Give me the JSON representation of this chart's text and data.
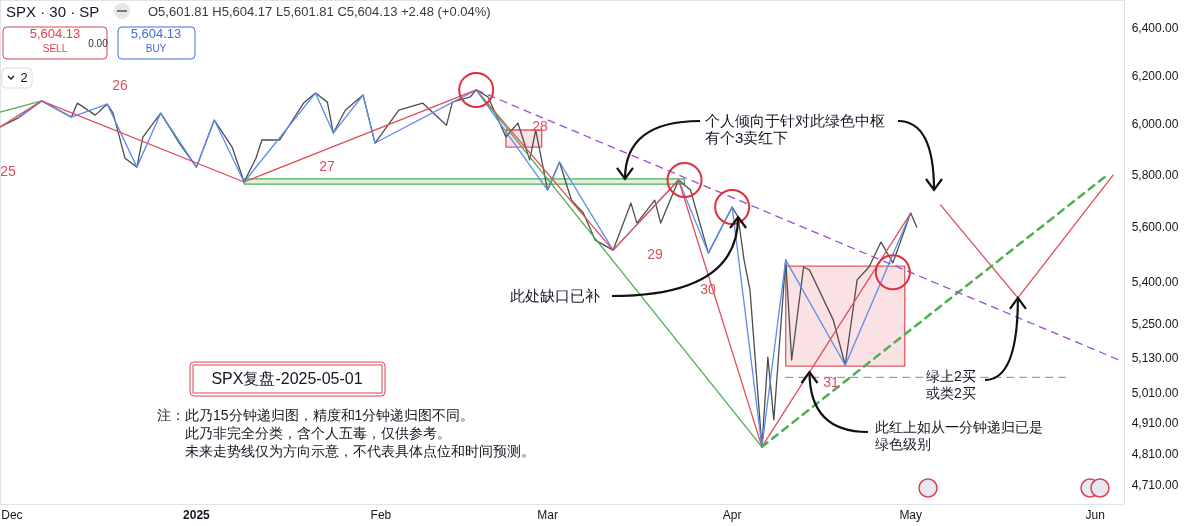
{
  "chart_data": {
    "type": "line",
    "title": "SPX · 30 · SP",
    "subtitle": "O5,601.81 H5,604.17 L5,601.81 C5,604.13 +2.48 (+0.04%)",
    "xlim": [
      "2024-11-29",
      "2025-06-06"
    ],
    "ylim": [
      4651,
      6526
    ],
    "log": true,
    "xticks": [
      {
        "value": "2024-12-01",
        "label": "Dec"
      },
      {
        "value": "2025-01-01",
        "label": "2025"
      },
      {
        "value": "2025-02-01",
        "label": "Feb"
      },
      {
        "value": "2025-03-01",
        "label": "Mar"
      },
      {
        "value": "2025-04-01",
        "label": "Apr"
      },
      {
        "value": "2025-05-01",
        "label": "May"
      },
      {
        "value": "2025-06-01",
        "label": "Jun"
      }
    ],
    "yticks": [
      {
        "value": 6400,
        "label": "6,400.00"
      },
      {
        "value": 6200,
        "label": "6,200.00"
      },
      {
        "value": 6000,
        "label": "6,000.00"
      },
      {
        "value": 5800,
        "label": "5,800.00"
      },
      {
        "value": 5600,
        "label": "5,600.00"
      },
      {
        "value": 5400,
        "label": "5,400.00"
      },
      {
        "value": 5250,
        "label": "5,250.00"
      },
      {
        "value": 5130,
        "label": "5,130.00"
      },
      {
        "value": 5010,
        "label": "5,010.00"
      },
      {
        "value": 4910,
        "label": "4,910.00"
      },
      {
        "value": 4810,
        "label": "4,810.00"
      },
      {
        "value": 4710,
        "label": "4,710.00"
      }
    ],
    "series": [
      {
        "type": "area",
        "color": "#4caf50",
        "x": [
          "2025-01-09",
          "2025-03-24",
          "2025-03-24",
          "2025-01-09",
          "2025-01-09"
        ],
        "values": [
          5788,
          5788,
          5768,
          5768,
          5788
        ]
      },
      {
        "type": "area",
        "color": "#e05a68",
        "x": [
          "2025-04-10",
          "2025-04-30",
          "2025-04-30",
          "2025-04-10",
          "2025-04-10"
        ],
        "values": [
          5459,
          5459,
          5105,
          5105,
          5459
        ]
      },
      {
        "type": "area",
        "color": "#e05a68",
        "x": [
          "2025-02-22",
          "2025-02-28",
          "2025-02-28",
          "2025-02-22",
          "2025-02-22"
        ],
        "values": [
          5981,
          5981,
          5913,
          5913,
          5981
        ]
      },
      {
        "type": "line",
        "color": "#4d4d4d",
        "x": [
          "2024-11-29",
          "2024-12-02",
          "2024-12-06",
          "2024-12-11",
          "2024-12-12",
          "2024-12-15",
          "2024-12-17",
          "2024-12-18",
          "2024-12-20",
          "2024-12-22",
          "2024-12-23",
          "2024-12-26",
          "2024-12-29",
          "2025-01-01",
          "2025-01-04",
          "2025-01-07",
          "2025-01-09",
          "2025-01-11",
          "2025-01-12",
          "2025-01-15",
          "2025-01-19",
          "2025-01-21",
          "2025-01-23",
          "2025-01-24",
          "2025-01-26",
          "2025-01-29",
          "2025-01-31",
          "2025-02-04",
          "2025-02-08",
          "2025-02-12",
          "2025-02-13",
          "2025-02-16",
          "2025-02-17",
          "2025-02-19",
          "2025-02-22",
          "2025-02-24",
          "2025-02-26",
          "2025-02-27",
          "2025-03-01",
          "2025-03-03",
          "2025-03-05",
          "2025-03-07",
          "2025-03-09",
          "2025-03-12",
          "2025-03-15",
          "2025-03-16",
          "2025-03-19",
          "2025-03-20",
          "2025-03-23",
          "2025-03-25",
          "2025-03-28",
          "2025-04-01",
          "2025-04-02",
          "2025-04-03",
          "2025-04-04",
          "2025-04-06",
          "2025-04-07",
          "2025-04-08",
          "2025-04-10",
          "2025-04-11",
          "2025-04-13",
          "2025-04-14",
          "2025-04-18",
          "2025-04-20",
          "2025-04-22",
          "2025-04-24",
          "2025-04-26",
          "2025-04-28",
          "2025-05-01",
          "2025-05-02"
        ],
        "values": [
          5993,
          6029,
          6099,
          6033,
          6090,
          6041,
          6086,
          6049,
          5869,
          5834,
          5953,
          6049,
          5933,
          5834,
          6021,
          5913,
          5776,
          5869,
          5941,
          5941,
          6090,
          6131,
          6094,
          5969,
          6061,
          6123,
          5929,
          6061,
          6090,
          6000,
          6094,
          6115,
          6144,
          6115,
          5953,
          6009,
          5862,
          5981,
          5745,
          5854,
          5706,
          5657,
          5555,
          5518,
          5695,
          5619,
          5706,
          5619,
          5784,
          5745,
          5507,
          5680,
          5642,
          5482,
          5372,
          4836,
          5136,
          4924,
          5482,
          5126,
          5456,
          5445,
          5265,
          5108,
          5409,
          5456,
          5548,
          5471,
          5657,
          5604
        ]
      },
      {
        "type": "line",
        "color": "#5b8def",
        "x": [
          "2024-12-02",
          "2024-12-06",
          "2024-12-11",
          "2024-12-17",
          "2024-12-22",
          "2024-12-26",
          "2025-01-01",
          "2025-01-04",
          "2025-01-09",
          "2025-01-21",
          "2025-01-24",
          "2025-01-29",
          "2025-01-31",
          "2025-02-17",
          "2025-03-01",
          "2025-03-03",
          "2025-03-12",
          "2025-03-23",
          "2025-03-28",
          "2025-04-01",
          "2025-04-06",
          "2025-04-10",
          "2025-04-20",
          "2025-05-01"
        ],
        "values": [
          6029,
          6099,
          6033,
          6086,
          5834,
          6049,
          5834,
          6021,
          5776,
          6131,
          5969,
          6123,
          5929,
          6144,
          5745,
          5854,
          5518,
          5784,
          5507,
          5680,
          4836,
          5482,
          5108,
          5657
        ]
      },
      {
        "type": "line",
        "color": "#e04e5a",
        "x": [
          "2024-11-29",
          "2024-12-06",
          "2025-01-09",
          "2025-02-17",
          "2025-03-12",
          "2025-03-23",
          "2025-04-06",
          "2025-05-01"
        ],
        "values": [
          5993,
          6099,
          5776,
          6144,
          5518,
          5784,
          4836,
          5657
        ]
      },
      {
        "type": "line",
        "color": "#4caf50",
        "x": [
          "2024-11-29",
          "2024-12-06"
        ],
        "values": [
          6053,
          6099
        ]
      },
      {
        "type": "line",
        "color": "#4caf50",
        "x": [
          "2025-02-17",
          "2025-04-06"
        ],
        "values": [
          6144,
          4836
        ]
      },
      {
        "type": "line",
        "color": "#e04e5a",
        "x": [
          "2025-05-06",
          "2025-05-19",
          "2025-06-04"
        ],
        "values": [
          5688,
          5344,
          5803
        ]
      },
      {
        "type": "line",
        "color": "#4caf50",
        "line_style": "dashed",
        "x": [
          "2025-04-06",
          "2025-06-03"
        ],
        "values": [
          4836,
          5803
        ]
      },
      {
        "type": "line",
        "color": "#9c4fd0",
        "line_style": "dashed",
        "x": [
          "2025-02-17",
          "2025-06-05"
        ],
        "values": [
          6144,
          5126
        ]
      },
      {
        "type": "line",
        "color": "#9e9e9e",
        "line_style": "dashed",
        "x": [
          "2025-04-10",
          "2025-05-27"
        ],
        "values": [
          5067,
          5067
        ]
      },
      {
        "type": "scatter",
        "color": "#e0303c",
        "marker": "circle",
        "x": [
          "2025-02-17",
          "2025-03-24",
          "2025-04-01",
          "2025-04-28"
        ],
        "values": [
          6144,
          5784,
          5680,
          5437
        ]
      }
    ],
    "annotations": [
      "25",
      "26",
      "27",
      "28",
      "29",
      "30",
      "31",
      "5,604.13",
      "SELL",
      "0.00",
      "5,604.13",
      "BUY",
      "2",
      {
        "text": "个人倾向于针对此绿色中枢",
        "x": "2025-03-14",
        "y": 5788
      },
      "有个3卖红下",
      {
        "text": "此处缺口已补",
        "x": "2025-04-02",
        "y": 5642
      },
      "SPX复盘-2025-05-01",
      "注：此乃15分钟递归图，精度和1分钟递归图不同。",
      "此乃非完全分类，含个人五毒，仅供参考。",
      "未来走势线仅为方向示意，不代表具体点位和时间预测。",
      {
        "text": "绿上2买",
        "x": "2025-05-19",
        "y": 5344
      },
      "或类2买",
      {
        "text": "此红上如从一分钟递归已是",
        "x": "2025-04-14",
        "y": 5085
      },
      "绿色级别"
    ]
  }
}
